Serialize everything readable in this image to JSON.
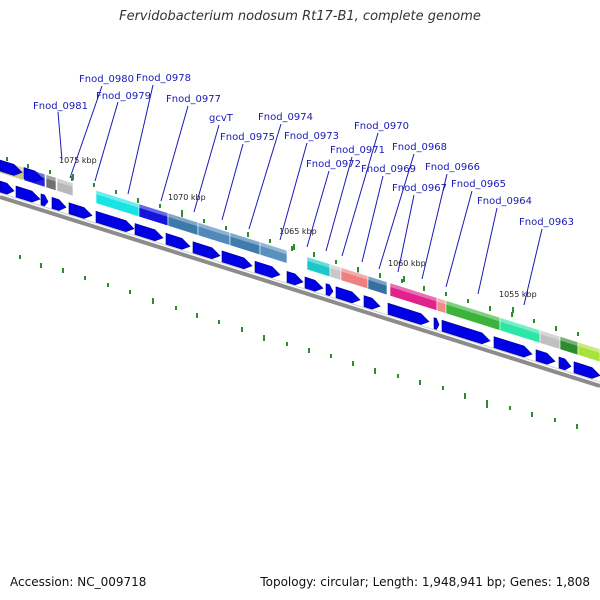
{
  "title": "Fervidobacterium nodosum Rt17-B1, complete genome",
  "footer": {
    "accession_label": "Accession:",
    "accession": "NC_009718",
    "topology_label": "Topology:",
    "topology": "circular",
    "length_label": "Length:",
    "length": "1,948,941 bp",
    "genes_label": "Genes:",
    "genes": "1,808"
  },
  "kbp_marks": [
    "1075 kbp",
    "1070 kbp",
    "1065 kbp",
    "1060 kbp",
    "1055 kbp"
  ],
  "gene_labels": [
    "Fnod_0981",
    "Fnod_0980",
    "Fnod_0979",
    "Fnod_0978",
    "Fnod_0977",
    "gcvT",
    "Fnod_0975",
    "Fnod_0974",
    "Fnod_0973",
    "Fnod_0972",
    "Fnod_0971",
    "Fnod_0970",
    "Fnod_0969",
    "Fnod_0968",
    "Fnod_0967",
    "Fnod_0966",
    "Fnod_0965",
    "Fnod_0964",
    "Fnod_0963"
  ],
  "colors": {
    "label": "#1a1ab4",
    "cds": "#0000e6",
    "backbone": "#8c8c8c",
    "tick": "#2e8b2e"
  }
}
